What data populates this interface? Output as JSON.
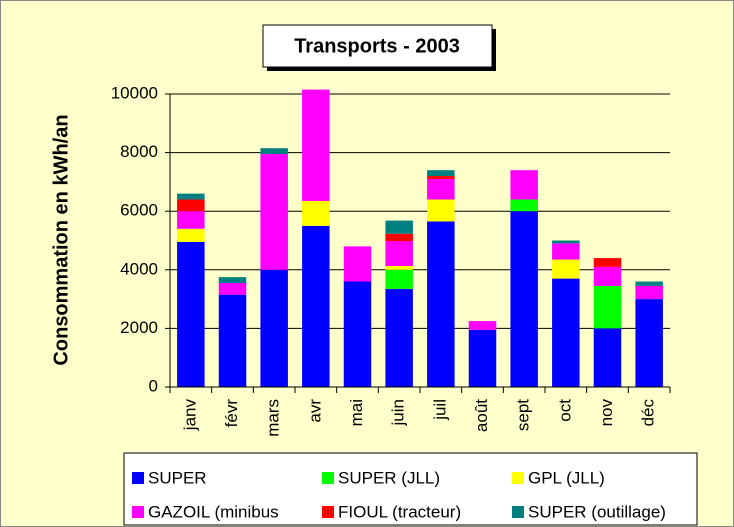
{
  "chart_data": {
    "type": "stacked_bar",
    "title": "Transports - 2003",
    "y_label": "Consommation en kWh/an",
    "categories": [
      "janv",
      "févr",
      "mars",
      "avr",
      "mai",
      "juin",
      "juil",
      "août",
      "sept",
      "oct",
      "nov",
      "déc"
    ],
    "series": [
      {
        "name": "SUPER",
        "color": "#0000ff",
        "values": [
          4950,
          3150,
          4000,
          5500,
          3600,
          3350,
          5650,
          1950,
          6000,
          3700,
          2000,
          3000
        ]
      },
      {
        "name": "SUPER (JLL)",
        "color": "#00ff00",
        "values": [
          0,
          0,
          0,
          0,
          0,
          650,
          0,
          0,
          400,
          0,
          1450,
          0
        ]
      },
      {
        "name": "GPL (JLL)",
        "color": "#ffff00",
        "values": [
          450,
          0,
          0,
          850,
          0,
          130,
          750,
          0,
          0,
          650,
          0,
          0
        ]
      },
      {
        "name": "GAZOIL (minibus",
        "color": "#ff00ff",
        "values": [
          600,
          400,
          3950,
          3800,
          1200,
          850,
          700,
          300,
          1000,
          550,
          650,
          450
        ]
      },
      {
        "name": "FIOUL (tracteur)",
        "color": "#ff0000",
        "values": [
          400,
          0,
          0,
          0,
          0,
          250,
          100,
          0,
          0,
          0,
          300,
          0
        ]
      },
      {
        "name": "SUPER (outillage)",
        "color": "#008080",
        "values": [
          200,
          200,
          200,
          0,
          0,
          450,
          200,
          0,
          0,
          100,
          0,
          150
        ]
      }
    ],
    "ylim": [
      0,
      10000
    ],
    "yticks": [
      0,
      2000,
      4000,
      6000,
      8000,
      10000
    ],
    "grid": true,
    "legend": "bottom"
  }
}
